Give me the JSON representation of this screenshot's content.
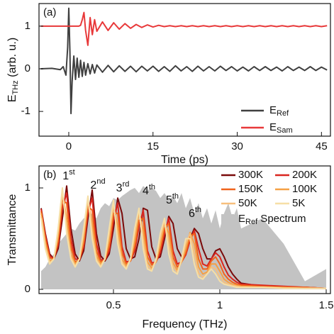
{
  "chart_data": [
    {
      "type": "line",
      "panel_label": "(a)",
      "xlabel": "Time (ps)",
      "ylabel": [
        "E",
        "THz",
        " (arb. u.)"
      ],
      "xlim": [
        -5.3,
        46.6
      ],
      "ylim": [
        -1.58,
        1.53
      ],
      "xticks": [
        0,
        15,
        30,
        45
      ],
      "yticks": [
        -1,
        0,
        1
      ],
      "legend": "lower right",
      "legend_columns": 1,
      "x": [
        -5,
        -3,
        -1.5,
        -1,
        -0.5,
        -0.2,
        0,
        0.2,
        0.4,
        0.6,
        0.9,
        1.2,
        1.5,
        1.8,
        2.1,
        2.4,
        2.7,
        3,
        3.4,
        3.8,
        4.2,
        4.6,
        5,
        6,
        7,
        8,
        9,
        10,
        11,
        12,
        13,
        14,
        15,
        16,
        17,
        18,
        19,
        20,
        21,
        22,
        23,
        24,
        25,
        26,
        27,
        28,
        29,
        30,
        31,
        32,
        33,
        34,
        35,
        36,
        37,
        38,
        39,
        40,
        41,
        42,
        43,
        44,
        45,
        46
      ],
      "series": [
        {
          "name": [
            "E",
            "Ref"
          ],
          "color": "#404040",
          "values": [
            0,
            0.01,
            -0.02,
            0.05,
            -0.15,
            0.5,
            1.42,
            0.4,
            -1.05,
            -0.3,
            0.3,
            -0.25,
            0.25,
            -0.2,
            0.2,
            -0.18,
            0.15,
            -0.15,
            0.12,
            -0.12,
            0.1,
            -0.1,
            0.09,
            -0.08,
            0.08,
            -0.07,
            0.07,
            -0.06,
            0.06,
            -0.07,
            0.06,
            -0.05,
            0.06,
            -0.06,
            0.05,
            -0.06,
            0.07,
            -0.05,
            0.05,
            -0.06,
            0.06,
            -0.05,
            0.05,
            -0.05,
            0.06,
            -0.04,
            0.05,
            -0.05,
            0.04,
            -0.05,
            0.05,
            -0.04,
            0.05,
            -0.04,
            0.04,
            -0.05,
            0.05,
            -0.04,
            0.04,
            -0.04,
            0.05,
            -0.04,
            0.04,
            -0.03
          ]
        },
        {
          "name": [
            "E",
            "Sam"
          ],
          "color": "#e8393a",
          "values": [
            1,
            1,
            1,
            1,
            1,
            1,
            1,
            1,
            1,
            1,
            1,
            1,
            1,
            1,
            1.02,
            1.15,
            1.32,
            0.9,
            0.55,
            1.2,
            0.8,
            1.15,
            0.88,
            1.1,
            0.9,
            1.08,
            0.93,
            1.06,
            0.95,
            1.04,
            0.97,
            1.03,
            0.98,
            1.02,
            0.99,
            1.01,
            0.99,
            1.01,
            0.99,
            1.01,
            0.99,
            1.01,
            0.99,
            1.01,
            0.99,
            1.01,
            0.99,
            1.01,
            0.99,
            1.01,
            0.99,
            1.01,
            0.99,
            1.01,
            0.99,
            1.01,
            0.99,
            1.01,
            0.99,
            1.01,
            0.99,
            1.01,
            0.99,
            1.01
          ]
        }
      ]
    },
    {
      "type": "line",
      "panel_label": "(b)",
      "xlabel": "Frequency (THz)",
      "ylabel": "Transmittance",
      "xlim": [
        0.15,
        1.52
      ],
      "ylim": [
        -0.042,
        1.217
      ],
      "xticks": [
        0.5,
        1,
        1.5
      ],
      "yticks": [
        0,
        1
      ],
      "legend": "upper right",
      "legend_columns": 2,
      "annotations": [
        [
          "1",
          "st"
        ],
        [
          "2",
          "nd"
        ],
        [
          "3",
          "rd"
        ],
        [
          "4",
          "th"
        ],
        [
          "5",
          "th"
        ],
        [
          "6",
          "th"
        ]
      ],
      "x": [
        0.16,
        0.18,
        0.2,
        0.22,
        0.24,
        0.26,
        0.28,
        0.3,
        0.32,
        0.34,
        0.36,
        0.38,
        0.4,
        0.42,
        0.44,
        0.46,
        0.48,
        0.5,
        0.52,
        0.54,
        0.56,
        0.58,
        0.6,
        0.62,
        0.64,
        0.66,
        0.68,
        0.7,
        0.72,
        0.74,
        0.76,
        0.78,
        0.8,
        0.82,
        0.84,
        0.86,
        0.88,
        0.9,
        0.92,
        0.94,
        0.96,
        0.98,
        1,
        1.02,
        1.04,
        1.06,
        1.08,
        1.1,
        1.2,
        1.3,
        1.4,
        1.5
      ],
      "series": [
        {
          "name": "300K",
          "color": "#7a0a0a",
          "values": [
            0.8,
            0.55,
            0.35,
            0.3,
            0.4,
            0.7,
            1.02,
            0.6,
            0.35,
            0.28,
            0.38,
            0.7,
            0.98,
            0.55,
            0.33,
            0.28,
            0.35,
            0.6,
            0.9,
            0.75,
            0.4,
            0.3,
            0.32,
            0.5,
            0.8,
            0.78,
            0.42,
            0.3,
            0.32,
            0.5,
            0.72,
            0.65,
            0.4,
            0.32,
            0.35,
            0.5,
            0.6,
            0.55,
            0.4,
            0.3,
            0.3,
            0.38,
            0.4,
            0.32,
            0.22,
            0.15,
            0.1,
            0.06,
            0.03,
            0.02,
            0.02,
            0.01
          ]
        },
        {
          "name": "200K",
          "color": "#d9261f",
          "values": [
            0.79,
            0.53,
            0.33,
            0.3,
            0.44,
            0.8,
            0.95,
            0.5,
            0.3,
            0.29,
            0.42,
            0.76,
            0.9,
            0.45,
            0.29,
            0.29,
            0.38,
            0.68,
            0.85,
            0.42,
            0.27,
            0.28,
            0.38,
            0.62,
            0.78,
            0.38,
            0.26,
            0.27,
            0.36,
            0.55,
            0.7,
            0.38,
            0.25,
            0.27,
            0.34,
            0.48,
            0.58,
            0.4,
            0.25,
            0.23,
            0.3,
            0.36,
            0.32,
            0.22,
            0.14,
            0.1,
            0.07,
            0.05,
            0.04,
            0.03,
            0.02,
            0.01
          ]
        },
        {
          "name": "150K",
          "color": "#f0631c",
          "values": [
            0.77,
            0.5,
            0.31,
            0.3,
            0.47,
            0.88,
            0.85,
            0.42,
            0.27,
            0.29,
            0.45,
            0.82,
            0.78,
            0.38,
            0.27,
            0.29,
            0.42,
            0.75,
            0.75,
            0.36,
            0.25,
            0.28,
            0.42,
            0.68,
            0.7,
            0.32,
            0.24,
            0.27,
            0.4,
            0.6,
            0.65,
            0.32,
            0.22,
            0.27,
            0.36,
            0.52,
            0.55,
            0.3,
            0.2,
            0.2,
            0.28,
            0.32,
            0.25,
            0.15,
            0.1,
            0.07,
            0.05,
            0.04,
            0.03,
            0.02,
            0.02,
            0.01
          ]
        },
        {
          "name": "100K",
          "color": "#f5a044",
          "values": [
            0.75,
            0.46,
            0.28,
            0.3,
            0.52,
            0.95,
            0.7,
            0.35,
            0.25,
            0.3,
            0.5,
            0.88,
            0.65,
            0.33,
            0.25,
            0.3,
            0.48,
            0.82,
            0.62,
            0.3,
            0.23,
            0.29,
            0.48,
            0.76,
            0.58,
            0.27,
            0.21,
            0.27,
            0.44,
            0.66,
            0.55,
            0.26,
            0.19,
            0.27,
            0.4,
            0.56,
            0.45,
            0.22,
            0.15,
            0.17,
            0.25,
            0.25,
            0.18,
            0.1,
            0.07,
            0.05,
            0.04,
            0.03,
            0.02,
            0.02,
            0.01,
            0.01
          ]
        },
        {
          "name": "50K",
          "color": "#f7bf7c",
          "values": [
            0.72,
            0.42,
            0.26,
            0.3,
            0.58,
            0.98,
            0.6,
            0.32,
            0.23,
            0.3,
            0.56,
            0.9,
            0.55,
            0.3,
            0.23,
            0.3,
            0.55,
            0.85,
            0.52,
            0.27,
            0.21,
            0.3,
            0.55,
            0.78,
            0.48,
            0.23,
            0.19,
            0.28,
            0.5,
            0.68,
            0.45,
            0.22,
            0.17,
            0.28,
            0.45,
            0.55,
            0.35,
            0.16,
            0.12,
            0.15,
            0.22,
            0.2,
            0.12,
            0.07,
            0.05,
            0.04,
            0.03,
            0.02,
            0.02,
            0.01,
            0.01,
            0.01
          ]
        },
        {
          "name": "5K",
          "color": "#f6dfa6",
          "values": [
            0.7,
            0.4,
            0.25,
            0.3,
            0.6,
            1,
            0.55,
            0.3,
            0.22,
            0.3,
            0.6,
            0.92,
            0.5,
            0.28,
            0.22,
            0.3,
            0.6,
            0.88,
            0.45,
            0.25,
            0.2,
            0.3,
            0.6,
            0.8,
            0.4,
            0.2,
            0.18,
            0.3,
            0.55,
            0.7,
            0.35,
            0.18,
            0.15,
            0.3,
            0.5,
            0.5,
            0.25,
            0.12,
            0.1,
            0.15,
            0.2,
            0.15,
            0.08,
            0.05,
            0.04,
            0.03,
            0.02,
            0.02,
            0.02,
            0.01,
            0.01,
            0.01
          ]
        },
        {
          "name": [
            "E",
            "Ref",
            " Spectrum"
          ],
          "color": "#c3c3c3",
          "style": "area",
          "values": [
            0.18,
            0.22,
            0.3,
            0.35,
            0.45,
            0.5,
            0.55,
            0.6,
            0.58,
            0.65,
            0.7,
            0.72,
            0.75,
            0.7,
            0.8,
            0.85,
            0.82,
            0.9,
            0.88,
            0.92,
            0.95,
            0.98,
            1,
            0.95,
            1.02,
            0.98,
            1,
            0.97,
            0.9,
            0.95,
            0.88,
            0.92,
            0.85,
            0.95,
            0.8,
            0.9,
            0.75,
            0.85,
            0.7,
            0.8,
            0.65,
            0.78,
            0.6,
            0.75,
            0.85,
            0.7,
            0.8,
            0.6,
            0.7,
            0.45,
            0.08,
            0.2
          ]
        }
      ]
    }
  ]
}
